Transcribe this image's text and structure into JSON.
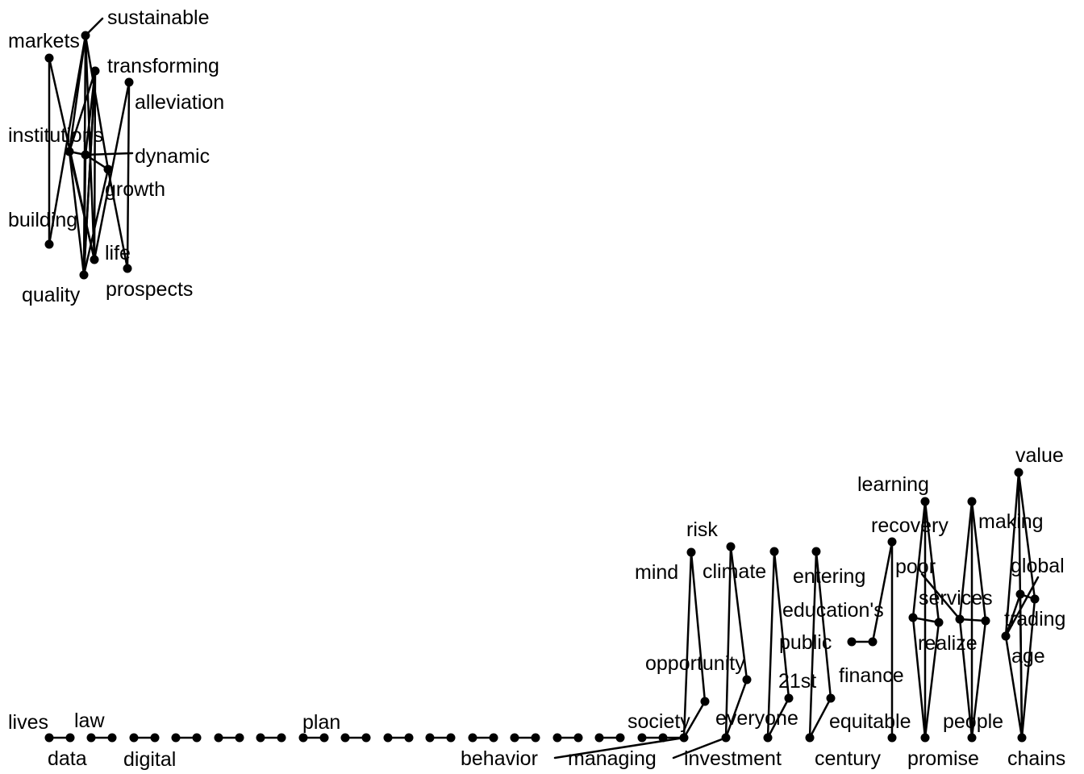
{
  "graph": {
    "nodes": {
      "markets": "markets",
      "sustainable": "sustainable",
      "transforming": "transforming",
      "alleviation": "alleviation",
      "institutions": "institutions",
      "dynamic": "dynamic",
      "growth": "growth",
      "building": "building",
      "life": "life",
      "quality": "quality",
      "prospects": "prospects",
      "lives": "lives",
      "law": "law",
      "data": "data",
      "digital": "digital",
      "plan": "plan",
      "society": "society",
      "behavior": "behavior",
      "managing": "managing",
      "investment": "investment",
      "mind": "mind",
      "risk": "risk",
      "opportunity": "opportunity",
      "climate": "climate",
      "everyone": "everyone",
      "21st": "21st",
      "century": "century",
      "entering": "entering",
      "educations": "education's",
      "public": "public",
      "finance": "finance",
      "equitable": "equitable",
      "learning": "learning",
      "recovery": "recovery",
      "poor": "poor",
      "services": "services",
      "realize": "realize",
      "promise": "promise",
      "people": "people",
      "making": "making",
      "value": "value",
      "global": "global",
      "trading": "trading",
      "age": "age",
      "chains": "chains"
    }
  }
}
